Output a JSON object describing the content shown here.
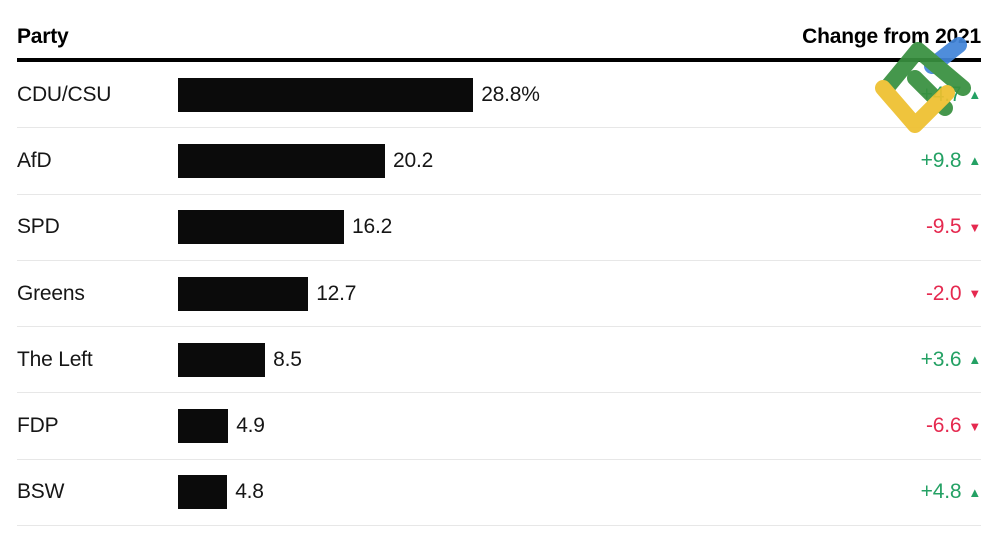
{
  "header": {
    "party_label": "Party",
    "change_label": "Change from 2021"
  },
  "chart_data": {
    "type": "bar",
    "title": "",
    "orientation": "horizontal",
    "categories": [
      "CDU/CSU",
      "AfD",
      "SPD",
      "Greens",
      "The Left",
      "FDP",
      "BSW"
    ],
    "values": [
      28.8,
      20.2,
      16.2,
      12.7,
      8.5,
      4.9,
      4.8
    ],
    "value_labels": [
      "28.8%",
      "20.2",
      "16.2",
      "12.7",
      "8.5",
      "4.9",
      "4.8"
    ],
    "xlim": [
      0,
      30
    ],
    "grid": false,
    "bar_color": "#0b0b0b",
    "series": [
      {
        "name": "Change from 2021",
        "values": [
          4.7,
          9.8,
          -9.5,
          -2.0,
          3.6,
          -6.6,
          4.8
        ]
      }
    ],
    "changes": [
      {
        "label": "+4.7",
        "direction": "up"
      },
      {
        "label": "+9.8",
        "direction": "up"
      },
      {
        "label": "-9.5",
        "direction": "down"
      },
      {
        "label": "-2.0",
        "direction": "down"
      },
      {
        "label": "+3.6",
        "direction": "up"
      },
      {
        "label": "-6.6",
        "direction": "down"
      },
      {
        "label": "+4.8",
        "direction": "up"
      }
    ]
  },
  "icons": {
    "up_triangle": "▲",
    "down_triangle": "▼"
  },
  "colors": {
    "positive": "#24a164",
    "negative": "#e5294f",
    "bar": "#0b0b0b",
    "header_rule": "#000000",
    "row_separator": "#e7e7e7",
    "logo_green": "#38903f",
    "logo_yellow": "#eec02f",
    "logo_blue": "#4285d9"
  }
}
